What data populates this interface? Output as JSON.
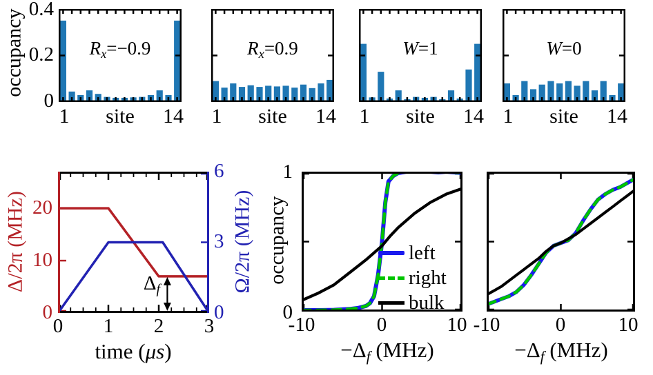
{
  "figure_type": "scientific-multi-panel",
  "background": "#ffffff",
  "colors": {
    "bar_blue": "#1f77b4",
    "curve_red": "#b42126",
    "curve_navy": "#2222b2",
    "legend_blue": "#1a1aee",
    "legend_green": "#00c400",
    "black": "#000000"
  },
  "chart_data": [
    {
      "type": "bar",
      "id": "occupancy-rx-minus09",
      "title_text": "Rx=−0.9",
      "label": {
        "base": "R",
        "sub": "x",
        "rest": "=−0.9"
      },
      "ylabel": "occupancy",
      "ylim": [
        0,
        0.4
      ],
      "yticks": [
        0,
        0.2,
        0.4
      ],
      "ytick_labels": [
        "0.4",
        "0.2",
        "0"
      ],
      "xlabel": "site",
      "xtick_labels": [
        "1",
        "14"
      ],
      "categories": [
        1,
        2,
        3,
        4,
        5,
        6,
        7,
        8,
        9,
        10,
        11,
        12,
        13,
        14
      ],
      "values": [
        0.35,
        0.045,
        0.03,
        0.05,
        0.035,
        0.022,
        0.018,
        0.018,
        0.02,
        0.022,
        0.03,
        0.05,
        0.03,
        0.35
      ],
      "color": "#1f77b4"
    },
    {
      "type": "bar",
      "id": "occupancy-rx-plus09",
      "title_text": "Rx=0.9",
      "label": {
        "base": "R",
        "sub": "x",
        "rest": "=0.9"
      },
      "ylim": [
        0,
        0.4
      ],
      "xlabel": "site",
      "xtick_labels": [
        "1",
        "14"
      ],
      "categories": [
        1,
        2,
        3,
        4,
        5,
        6,
        7,
        8,
        9,
        10,
        11,
        12,
        13,
        14
      ],
      "values": [
        0.09,
        0.062,
        0.08,
        0.065,
        0.072,
        0.065,
        0.07,
        0.067,
        0.07,
        0.062,
        0.075,
        0.06,
        0.08,
        0.095
      ],
      "color": "#1f77b4"
    },
    {
      "type": "bar",
      "id": "occupancy-w1",
      "title_text": "W=1",
      "label": {
        "base": "W",
        "sub": "",
        "rest": "=1"
      },
      "ylim": [
        0,
        0.4
      ],
      "xlabel": "site",
      "xtick_labels": [
        "1",
        "14"
      ],
      "categories": [
        1,
        2,
        3,
        4,
        5,
        6,
        7,
        8,
        9,
        10,
        11,
        12,
        13,
        14
      ],
      "values": [
        0.25,
        0.02,
        0.13,
        0.015,
        0.05,
        0.012,
        0.022,
        0.018,
        0.022,
        0.012,
        0.05,
        0.015,
        0.14,
        0.25
      ],
      "color": "#1f77b4"
    },
    {
      "type": "bar",
      "id": "occupancy-w0",
      "title_text": "W=0",
      "label": {
        "base": "W",
        "sub": "",
        "rest": "=0"
      },
      "ylim": [
        0,
        0.4
      ],
      "xlabel": "site",
      "xtick_labels": [
        "1",
        "14"
      ],
      "categories": [
        1,
        2,
        3,
        4,
        5,
        6,
        7,
        8,
        9,
        10,
        11,
        12,
        13,
        14
      ],
      "values": [
        0.08,
        0.03,
        0.09,
        0.055,
        0.075,
        0.09,
        0.08,
        0.09,
        0.07,
        0.09,
        0.05,
        0.09,
        0.03,
        0.08
      ],
      "color": "#1f77b4"
    },
    {
      "type": "line",
      "id": "pulse-sequence",
      "xlabel": "time (μs)",
      "xlabel_parts": {
        "pre": "time (",
        "it": "μs",
        "post": ")"
      },
      "xlim": [
        0,
        3
      ],
      "xticks": [
        0,
        1,
        2,
        3
      ],
      "left_axis": {
        "label": "Δ/2π (MHz)",
        "color": "#b42126",
        "lim": [
          0,
          27
        ],
        "ticks": [
          0,
          10,
          20
        ]
      },
      "right_axis": {
        "label": "Ω/2π (MHz)",
        "color": "#2222b2",
        "lim": [
          0,
          6
        ],
        "ticks": [
          0,
          3,
          6
        ]
      },
      "series": [
        {
          "name": "Delta/2pi",
          "axis": "left",
          "color": "#b42126",
          "x": [
            0,
            1,
            2,
            3
          ],
          "y": [
            20,
            20,
            7,
            7
          ]
        },
        {
          "name": "Omega/2pi",
          "axis": "right",
          "color": "#2222b2",
          "x": [
            0,
            1,
            2.08,
            3
          ],
          "y": [
            0,
            3,
            3,
            0
          ]
        }
      ],
      "annotation": {
        "base": "Δ",
        "sub": "f",
        "x": 2.17,
        "y_from": 0,
        "y_to": 7
      }
    },
    {
      "type": "line",
      "id": "edge-vs-bulk-occupancy-left-panel",
      "ylabel": "occupancy",
      "ylim": [
        0,
        1
      ],
      "ytick_labels": [
        "1",
        "0"
      ],
      "ytick_marks": [
        0,
        0.5,
        1
      ],
      "xlabel": "−Δf (MHz)",
      "xlabel_parts": {
        "pre": "−Δ",
        "sub": "f",
        "post": " (MHz)"
      },
      "xlim": [
        -10,
        10
      ],
      "xticks": [
        -10,
        0,
        10
      ],
      "xtick_labels": [
        "-10",
        "0",
        "10"
      ],
      "legend": [
        {
          "label": "left"
        },
        {
          "label": "right"
        },
        {
          "label": "bulk"
        }
      ],
      "legend_position": "right-center",
      "series": [
        {
          "name": "left",
          "color": "#1a1aee",
          "width": 6,
          "x": [
            -10,
            -8,
            -6,
            -4,
            -3,
            -2,
            -1.5,
            -1,
            -0.5,
            0,
            0.4,
            0.8,
            1.1,
            1.4,
            2,
            3,
            4,
            5,
            6,
            7,
            8,
            9,
            10
          ],
          "y": [
            0.01,
            0.01,
            0.012,
            0.018,
            0.025,
            0.04,
            0.06,
            0.11,
            0.26,
            0.5,
            0.78,
            0.93,
            0.95,
            0.97,
            0.99,
            1.0,
            1.0,
            1.0,
            1.0,
            0.995,
            1.0,
            0.995,
            0.99
          ]
        },
        {
          "name": "right",
          "color": "#00c400",
          "width": 4.5,
          "dash": "13 9",
          "x": [
            -10,
            -8,
            -6,
            -4,
            -3,
            -2,
            -1.5,
            -1,
            -0.5,
            0,
            0.4,
            0.8,
            1.1,
            1.4,
            2,
            3,
            4,
            5,
            6,
            7,
            8,
            9,
            10
          ],
          "y": [
            0.01,
            0.01,
            0.012,
            0.018,
            0.025,
            0.04,
            0.06,
            0.11,
            0.26,
            0.5,
            0.78,
            0.93,
            0.95,
            0.97,
            0.99,
            1.0,
            1.0,
            1.0,
            1.0,
            0.995,
            1.0,
            0.995,
            0.99
          ]
        },
        {
          "name": "bulk",
          "color": "#000000",
          "width": 4.2,
          "x": [
            -10,
            -8,
            -6,
            -4,
            -2,
            0,
            1,
            2,
            4,
            6,
            8,
            10
          ],
          "y": [
            0.08,
            0.13,
            0.19,
            0.28,
            0.37,
            0.47,
            0.54,
            0.6,
            0.7,
            0.78,
            0.84,
            0.88
          ]
        }
      ]
    },
    {
      "type": "line",
      "id": "edge-vs-bulk-occupancy-right-panel",
      "ylim": [
        0,
        1
      ],
      "ytick_marks": [
        0,
        0.5,
        1
      ],
      "xlabel": "−Δf (MHz)",
      "xlabel_parts": {
        "pre": "−Δ",
        "sub": "f",
        "post": " (MHz)"
      },
      "xlim": [
        -10,
        10
      ],
      "xticks": [
        -10,
        0,
        10
      ],
      "xtick_labels": [
        "-10",
        "0",
        "10"
      ],
      "series": [
        {
          "name": "left",
          "color": "#1a1aee",
          "width": 5.5,
          "x": [
            -10,
            -9,
            -8,
            -7,
            -6,
            -5,
            -4,
            -3,
            -2,
            -1,
            0,
            1,
            2,
            3,
            4,
            5,
            6,
            7,
            8,
            9,
            10
          ],
          "y": [
            0.05,
            0.07,
            0.09,
            0.11,
            0.14,
            0.19,
            0.26,
            0.34,
            0.42,
            0.47,
            0.49,
            0.51,
            0.56,
            0.65,
            0.73,
            0.8,
            0.84,
            0.87,
            0.89,
            0.92,
            0.95
          ]
        },
        {
          "name": "right",
          "color": "#00c400",
          "width": 4.5,
          "dash": "13 9",
          "x": [
            -10,
            -9,
            -8,
            -7,
            -6,
            -5,
            -4,
            -3,
            -2,
            -1,
            0,
            1,
            2,
            3,
            4,
            5,
            6,
            7,
            8,
            9,
            10
          ],
          "y": [
            0.05,
            0.07,
            0.09,
            0.11,
            0.14,
            0.19,
            0.26,
            0.34,
            0.42,
            0.47,
            0.49,
            0.51,
            0.56,
            0.65,
            0.73,
            0.8,
            0.84,
            0.87,
            0.89,
            0.92,
            0.95
          ]
        },
        {
          "name": "bulk",
          "color": "#000000",
          "width": 4,
          "x": [
            -10,
            -9,
            -8,
            -7,
            -6,
            -5,
            -4,
            -3,
            -2,
            -1,
            0,
            1,
            2,
            3,
            4,
            5,
            6,
            7,
            8,
            9,
            10
          ],
          "y": [
            0.12,
            0.15,
            0.18,
            0.22,
            0.26,
            0.3,
            0.34,
            0.38,
            0.43,
            0.47,
            0.49,
            0.52,
            0.55,
            0.59,
            0.63,
            0.67,
            0.71,
            0.75,
            0.79,
            0.83,
            0.87
          ]
        }
      ]
    }
  ]
}
